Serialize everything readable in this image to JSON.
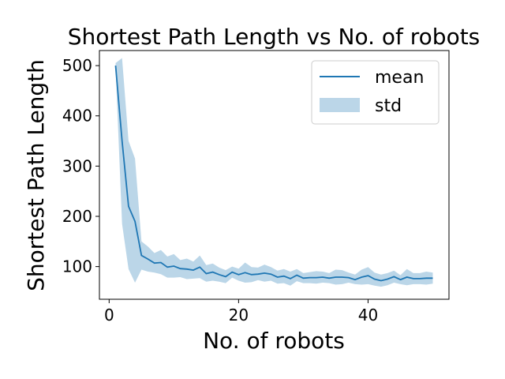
{
  "chart_data": {
    "type": "line",
    "title": "Shortest Path Length vs No. of robots",
    "xlabel": "No. of robots",
    "ylabel": "Shortest Path Length",
    "xlim": [
      -1.5,
      52.5
    ],
    "ylim": [
      35,
      530
    ],
    "xticks": [
      0,
      20,
      40
    ],
    "yticks": [
      100,
      200,
      300,
      400,
      500
    ],
    "grid": false,
    "legend_position": "top-right",
    "legend": [
      {
        "label": "mean",
        "kind": "line"
      },
      {
        "label": "std",
        "kind": "band"
      }
    ],
    "colors": {
      "line": "#1f77b4",
      "band": "#1f77b4",
      "band_opacity": 0.3
    },
    "x": [
      1,
      2,
      3,
      4,
      5,
      6,
      7,
      8,
      9,
      10,
      11,
      12,
      13,
      14,
      15,
      16,
      17,
      18,
      19,
      20,
      21,
      22,
      23,
      24,
      25,
      26,
      27,
      28,
      29,
      30,
      31,
      32,
      33,
      34,
      35,
      36,
      37,
      38,
      39,
      40,
      41,
      42,
      43,
      44,
      45,
      46,
      47,
      48,
      49,
      50
    ],
    "series": [
      {
        "name": "mean",
        "values": [
          500,
          350,
          220,
          190,
          122,
          115,
          107,
          108,
          99,
          101,
          96,
          95,
          93,
          99,
          86,
          89,
          84,
          80,
          89,
          84,
          88,
          84,
          85,
          87,
          85,
          79,
          81,
          76,
          83,
          77,
          78,
          78,
          79,
          77,
          79,
          79,
          78,
          74,
          79,
          82,
          75,
          72,
          75,
          80,
          74,
          79,
          76,
          76,
          77,
          77
        ]
      },
      {
        "name": "std",
        "upper": [
          505,
          515,
          350,
          315,
          150,
          140,
          127,
          133,
          120,
          125,
          113,
          116,
          110,
          122,
          103,
          106,
          98,
          93,
          100,
          96,
          108,
          99,
          98,
          104,
          99,
          92,
          95,
          90,
          95,
          87,
          89,
          91,
          90,
          87,
          94,
          93,
          88,
          84,
          94,
          99,
          88,
          84,
          87,
          92,
          83,
          95,
          87,
          87,
          90,
          88
        ],
        "lower": [
          495,
          185,
          95,
          68,
          94,
          90,
          88,
          85,
          78,
          78,
          79,
          75,
          76,
          77,
          70,
          72,
          70,
          67,
          78,
          72,
          68,
          69,
          73,
          70,
          72,
          66,
          67,
          62,
          71,
          67,
          67,
          66,
          68,
          67,
          64,
          65,
          68,
          65,
          64,
          65,
          62,
          60,
          63,
          68,
          65,
          63,
          65,
          65,
          64,
          66
        ]
      }
    ]
  }
}
